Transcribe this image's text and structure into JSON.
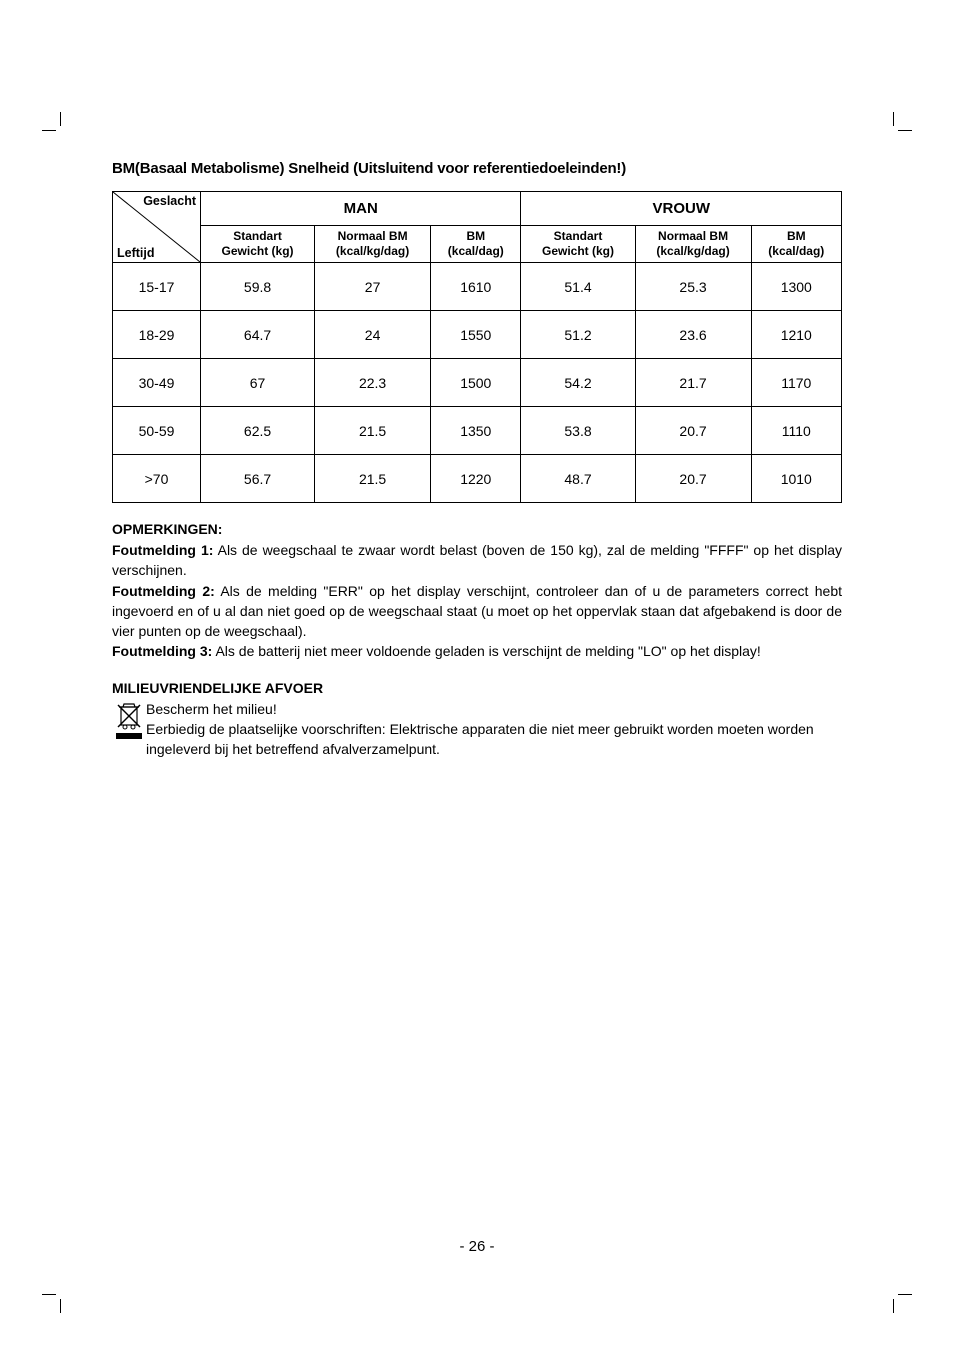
{
  "title": "BM(Basaal Metabolisme) Snelheid (Uitsluitend voor referentiedoeleinden!)",
  "table": {
    "diag_top": "Geslacht",
    "diag_bottom": "Leftijd",
    "man_header": "MAN",
    "vrouw_header": "VROUW",
    "sub_headers": {
      "col1": "Standart\nGewicht (kg)",
      "col2": "Normaal BM\n(kcal/kg/dag)",
      "col3": "BM\n(kcal/dag)",
      "col4": "Standart\nGewicht (kg)",
      "col5": "Normaal BM\n(kcal/kg/dag)",
      "col6": "BM\n(kcal/dag)"
    },
    "rows": [
      {
        "age": "15-17",
        "m_w": "59.8",
        "m_bm": "27",
        "m_kcal": "1610",
        "v_w": "51.4",
        "v_bm": "25.3",
        "v_kcal": "1300"
      },
      {
        "age": "18-29",
        "m_w": "64.7",
        "m_bm": "24",
        "m_kcal": "1550",
        "v_w": "51.2",
        "v_bm": "23.6",
        "v_kcal": "1210"
      },
      {
        "age": "30-49",
        "m_w": "67",
        "m_bm": "22.3",
        "m_kcal": "1500",
        "v_w": "54.2",
        "v_bm": "21.7",
        "v_kcal": "1170"
      },
      {
        "age": "50-59",
        "m_w": "62.5",
        "m_bm": "21.5",
        "m_kcal": "1350",
        "v_w": "53.8",
        "v_bm": "20.7",
        "v_kcal": "1110"
      },
      {
        "age": ">70",
        "m_w": "56.7",
        "m_bm": "21.5",
        "m_kcal": "1220",
        "v_w": "48.7",
        "v_bm": "20.7",
        "v_kcal": "1010"
      }
    ]
  },
  "opmerkingen": {
    "heading": "OPMERKINGEN:",
    "f1_label": "Foutmelding 1:",
    "f1_text": " Als de weegschaal te zwaar wordt belast (boven de 150 kg), zal de melding  \"FFFF\" op het display verschijnen.",
    "f2_label": "Foutmelding 2:",
    "f2_text": "  Als de melding \"ERR\" op het display verschijnt, controleer dan of u de parameters correct hebt ingevoerd en of u al dan niet goed op de weegschaal staat (u moet op het oppervlak staan dat afgebakend is door de vier punten op de weegschaal).",
    "f3_label": "Foutmelding 3:",
    "f3_text": " Als de batterij niet meer voldoende  geladen is verschijnt de melding \"LO\" op het display!"
  },
  "milieu": {
    "heading": "MILIEUVRIENDELIJKE AFVOER",
    "line1": "Bescherm het milieu!",
    "line2": "Eerbiedig de plaatselijke voorschriften:  Elektrische apparaten die niet meer gebruikt worden moeten worden ingeleverd bij het betreffend afvalverzamelpunt."
  },
  "page_number": "- 26 -",
  "colors": {
    "text": "#000000",
    "background": "#ffffff",
    "border": "#000000"
  }
}
